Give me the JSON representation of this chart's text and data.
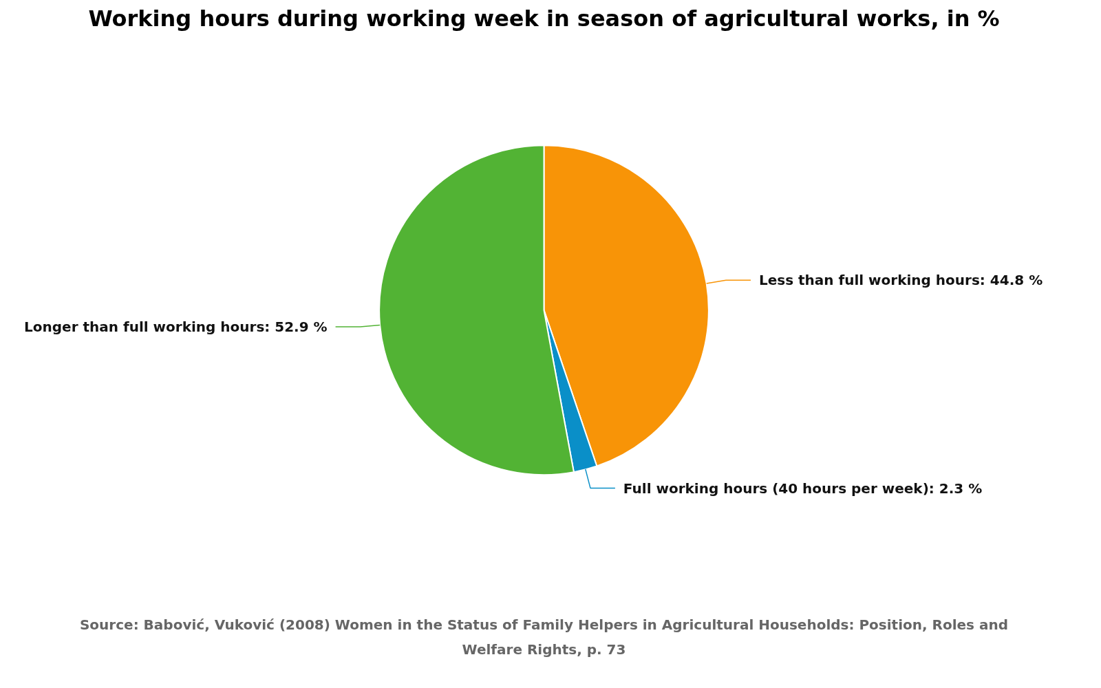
{
  "chart_data": {
    "type": "pie",
    "title": "Working hours during working week in season of agricultural works, in %",
    "categories": [
      "Less than full working hours",
      "Full working hours (40 hours per week)",
      "Longer than full working hours"
    ],
    "values": [
      44.8,
      2.3,
      52.9
    ],
    "colors": [
      "#f89407",
      "#0a8fc8",
      "#52b334"
    ],
    "value_labels": [
      "44.8 %",
      "2.3 %",
      "52.9 %"
    ],
    "annotations": [
      "Source: Babović, Vuković (2008) Women in the Status of Family Helpers in Agricultural Households: Position, Roles and Welfare Rights, p. 73"
    ]
  }
}
